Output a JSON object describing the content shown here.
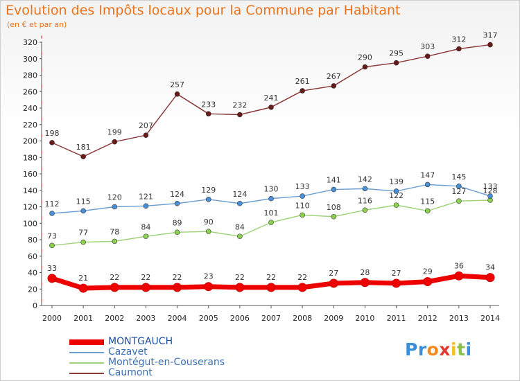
{
  "title": "Evolution des Impôts locaux pour la Commune par Habitant",
  "subtitle": "(en € et par an)",
  "chart_data": {
    "type": "line",
    "title": "Evolution des Impôts locaux pour la Commune par Habitant",
    "subtitle": "(en € et par an)",
    "x": [
      "2000",
      "2001",
      "2002",
      "2003",
      "2004",
      "2005",
      "2006",
      "2007",
      "2008",
      "2009",
      "2010",
      "2011",
      "2012",
      "2013",
      "2014"
    ],
    "ylim": [
      0,
      320
    ],
    "yticks": [
      0,
      20,
      40,
      60,
      80,
      100,
      120,
      140,
      160,
      180,
      200,
      220,
      240,
      260,
      280,
      300,
      320
    ],
    "grid": false,
    "legend": "bottom-left",
    "series": [
      {
        "name": "MONTGAUCH",
        "color": "#ee0000",
        "marker_color": "#ee0000",
        "values": [
          33,
          21,
          22,
          22,
          22,
          23,
          22,
          22,
          22,
          27,
          28,
          27,
          29,
          36,
          34
        ]
      },
      {
        "name": "Cazavet",
        "color": "#6c9fd1",
        "marker_color": "#4a90d9",
        "values": [
          112,
          115,
          120,
          121,
          124,
          129,
          124,
          130,
          133,
          141,
          142,
          139,
          147,
          145,
          133
        ]
      },
      {
        "name": "Montégut-en-Couserans",
        "color": "#9fd37a",
        "marker_color": "#8bd14e",
        "values": [
          73,
          77,
          78,
          84,
          89,
          90,
          84,
          101,
          110,
          108,
          116,
          122,
          115,
          127,
          128
        ]
      },
      {
        "name": "Caumont",
        "color": "#8b3a3a",
        "marker_color": "#6b1a1a",
        "values": [
          198,
          181,
          199,
          207,
          257,
          233,
          232,
          241,
          261,
          267,
          290,
          295,
          303,
          312,
          317
        ]
      }
    ]
  },
  "logo": {
    "text": "Proxiti",
    "letters": [
      "P",
      "r",
      "o",
      "x",
      "i",
      "t",
      "i"
    ],
    "colors": [
      "#3a8fd6",
      "#3a8fd6",
      "#f28c1e",
      "#e23a2e",
      "#f2c21e",
      "#8bc34a",
      "#3a8fd6"
    ]
  }
}
